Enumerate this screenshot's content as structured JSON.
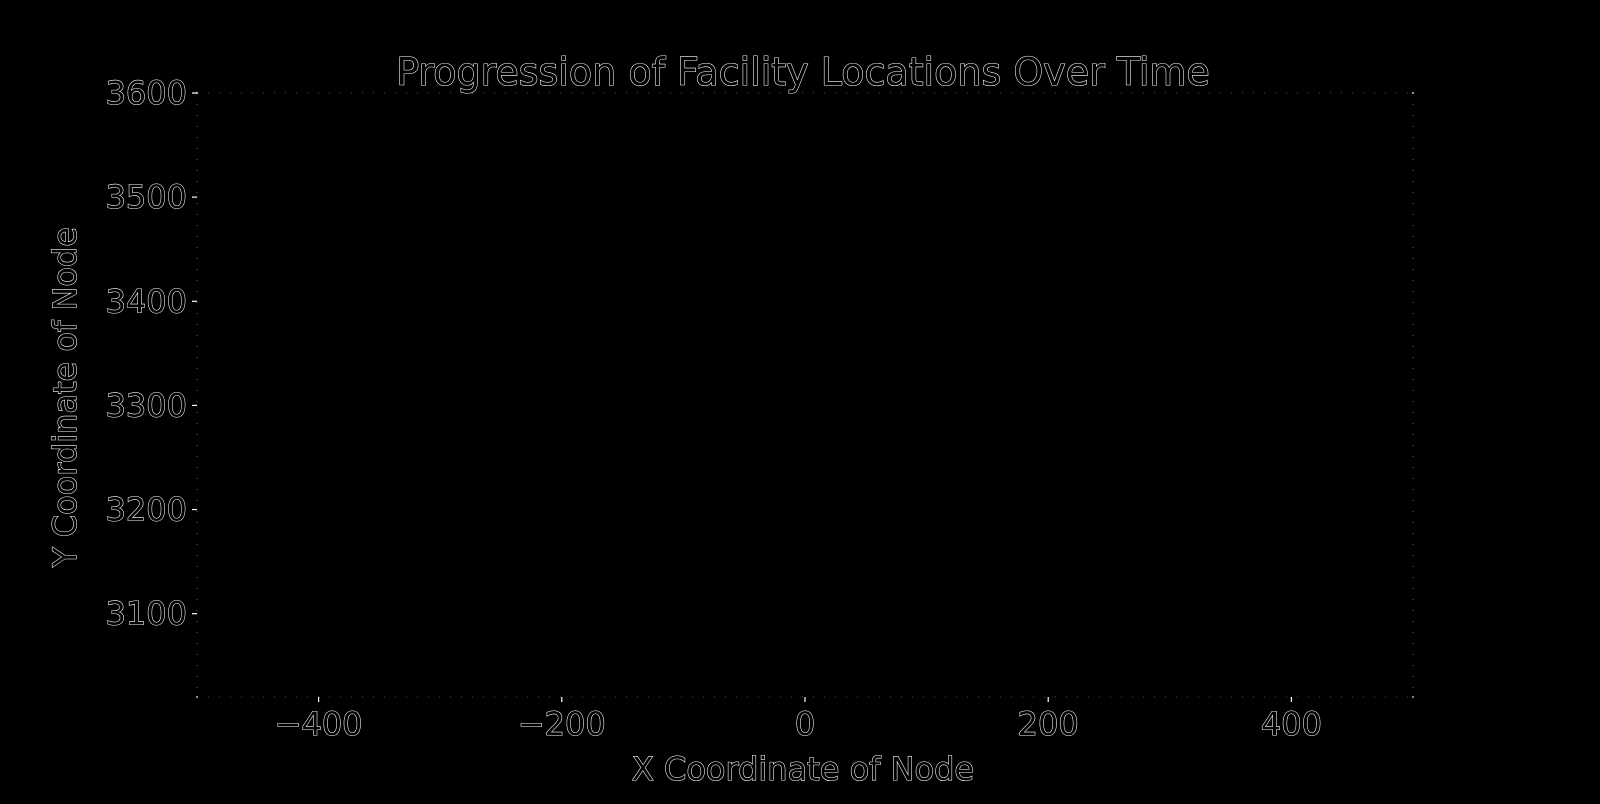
{
  "chart_data": {
    "type": "scatter",
    "title": "Progression of Facility Locations Over Time",
    "xlabel": "X Coordinate of Node",
    "ylabel": "Y Coordinate of Node",
    "xlim": [
      -500,
      500
    ],
    "ylim": [
      3020,
      3600
    ],
    "x_ticks": [
      -400,
      -200,
      0,
      200,
      400
    ],
    "x_tick_labels": [
      "−400",
      "−200",
      "0",
      "200",
      "400"
    ],
    "y_ticks": [
      3100,
      3200,
      3300,
      3400,
      3500,
      3600
    ],
    "y_tick_labels": [
      "3100",
      "3200",
      "3300",
      "3400",
      "3500",
      "3600"
    ],
    "grid": false,
    "series": [],
    "colors": {
      "background": "#000000",
      "foreground": "#ffffff"
    }
  }
}
